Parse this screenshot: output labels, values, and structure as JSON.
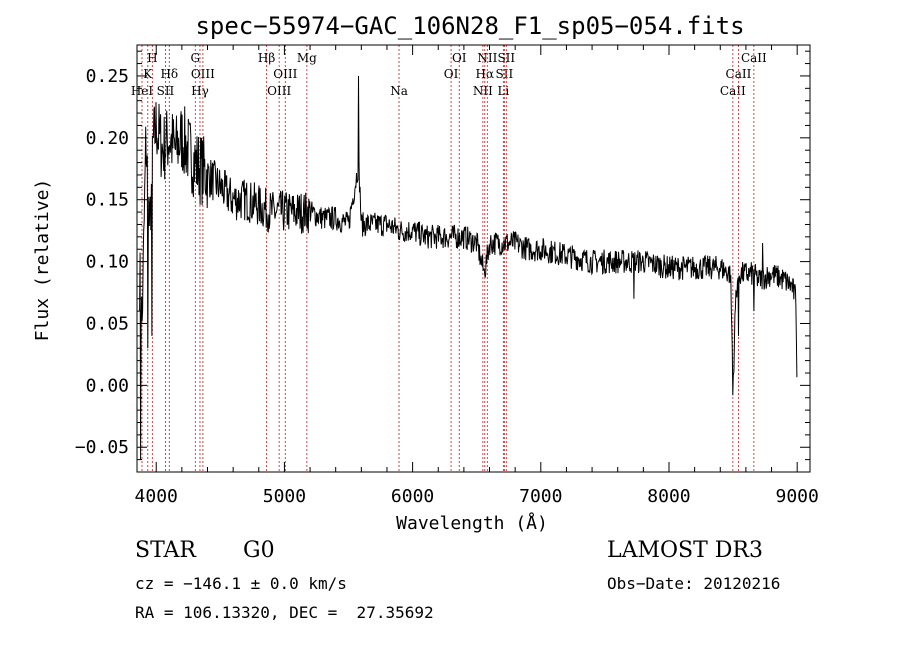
{
  "chart_data": {
    "type": "line",
    "title": "spec−55974−GAC_106N28_F1_sp05−054.fits",
    "xlabel": "Wavelength (Å)",
    "ylabel": "Flux (relative)",
    "xlim": [
      3850,
      9100
    ],
    "ylim": [
      -0.07,
      0.275
    ],
    "xticks": [
      4000,
      5000,
      6000,
      7000,
      8000,
      9000
    ],
    "xtick_labels": [
      "4000",
      "5000",
      "6000",
      "7000",
      "8000",
      "9000"
    ],
    "yticks": [
      -0.05,
      0.0,
      0.05,
      0.1,
      0.15,
      0.2,
      0.25
    ],
    "ytick_labels": [
      "−0.05",
      "0.00",
      "0.05",
      "0.10",
      "0.15",
      "0.20",
      "0.25"
    ],
    "line_color": "#000000",
    "line_marker_color": "#cc3333",
    "spectrum_anchors": {
      "wavelength": [
        3870,
        3890,
        3920,
        3950,
        3970,
        4000,
        4050,
        4100,
        4150,
        4200,
        4300,
        4400,
        4500,
        4600,
        4700,
        4800,
        4900,
        5000,
        5100,
        5200,
        5300,
        5400,
        5500,
        5580,
        5600,
        5700,
        5800,
        5900,
        6000,
        6100,
        6200,
        6300,
        6400,
        6500,
        6560,
        6600,
        6700,
        6800,
        6900,
        7000,
        7200,
        7400,
        7600,
        7800,
        8000,
        8200,
        8400,
        8480,
        8500,
        8520,
        8540,
        8600,
        8660,
        8700,
        8800,
        8900,
        8960,
        8990,
        9000
      ],
      "flux": [
        0.09,
        0.05,
        0.2,
        0.12,
        0.19,
        0.21,
        0.19,
        0.2,
        0.19,
        0.2,
        0.18,
        0.17,
        0.16,
        0.15,
        0.15,
        0.145,
        0.14,
        0.14,
        0.14,
        0.14,
        0.135,
        0.135,
        0.13,
        0.18,
        0.13,
        0.13,
        0.13,
        0.125,
        0.125,
        0.12,
        0.12,
        0.12,
        0.12,
        0.115,
        0.09,
        0.115,
        0.115,
        0.115,
        0.11,
        0.11,
        0.105,
        0.1,
        0.1,
        0.1,
        0.095,
        0.095,
        0.095,
        0.09,
        0.0,
        0.07,
        0.09,
        0.09,
        0.09,
        0.085,
        0.09,
        0.085,
        0.08,
        0.07,
        0.0
      ],
      "spikes": [
        {
          "wavelength": 3880,
          "flux": -0.06
        },
        {
          "wavelength": 3935,
          "flux": 0.03
        },
        {
          "wavelength": 3965,
          "flux": 0.04
        },
        {
          "wavelength": 5578,
          "flux": 0.25
        },
        {
          "wavelength": 6563,
          "flux": 0.09
        },
        {
          "wavelength": 7725,
          "flux": 0.07
        },
        {
          "wavelength": 8498,
          "flux": -0.008
        },
        {
          "wavelength": 8542,
          "flux": 0.04
        },
        {
          "wavelength": 8662,
          "flux": 0.06
        },
        {
          "wavelength": 8730,
          "flux": 0.115
        }
      ]
    },
    "line_markers": [
      {
        "wavelength": 3889,
        "labels": [
          "HeI"
        ],
        "level": 3
      },
      {
        "wavelength": 3934,
        "labels": [
          "K"
        ],
        "level": 2
      },
      {
        "wavelength": 3970,
        "labels": [
          "H"
        ],
        "level": 1
      },
      {
        "wavelength": 4072,
        "labels": [
          "SII"
        ],
        "level": 3
      },
      {
        "wavelength": 4102,
        "labels": [
          "Hδ"
        ],
        "level": 2
      },
      {
        "wavelength": 4305,
        "labels": [
          "G"
        ],
        "level": 1
      },
      {
        "wavelength": 4341,
        "labels": [
          "Hγ"
        ],
        "level": 3
      },
      {
        "wavelength": 4364,
        "labels": [
          "OIII"
        ],
        "level": 2
      },
      {
        "wavelength": 4861,
        "labels": [
          "Hβ"
        ],
        "level": 1
      },
      {
        "wavelength": 4959,
        "labels": [
          "OIII"
        ],
        "level": 3
      },
      {
        "wavelength": 5007,
        "labels": [
          "OIII"
        ],
        "level": 2
      },
      {
        "wavelength": 5175,
        "labels": [
          "Mg"
        ],
        "level": 1
      },
      {
        "wavelength": 5894,
        "labels": [
          "Na"
        ],
        "level": 3
      },
      {
        "wavelength": 6300,
        "labels": [
          "OI"
        ],
        "level": 2
      },
      {
        "wavelength": 6364,
        "labels": [
          "OI"
        ],
        "level": 1
      },
      {
        "wavelength": 6548,
        "labels": [
          "NII"
        ],
        "level": 3
      },
      {
        "wavelength": 6563,
        "labels": [
          "Hα"
        ],
        "level": 2
      },
      {
        "wavelength": 6583,
        "labels": [
          "NII"
        ],
        "level": 1
      },
      {
        "wavelength": 6708,
        "labels": [
          "Li"
        ],
        "level": 3
      },
      {
        "wavelength": 6716,
        "labels": [
          "SII"
        ],
        "level": 2
      },
      {
        "wavelength": 6731,
        "labels": [
          "SII"
        ],
        "level": 1
      },
      {
        "wavelength": 8498,
        "labels": [
          "CaII"
        ],
        "level": 3
      },
      {
        "wavelength": 8542,
        "labels": [
          "CaII"
        ],
        "level": 2
      },
      {
        "wavelength": 8662,
        "labels": [
          "CaII"
        ],
        "level": 1
      }
    ]
  },
  "info": {
    "object_class": "STAR",
    "subclass": "G0",
    "survey": "LAMOST DR3",
    "redshift_line": "cz = −146.1 ± 0.0 km/s",
    "obs_date_line": "Obs−Date: 20120216",
    "coords_line": "RA = 106.13320, DEC =  27.35692"
  }
}
